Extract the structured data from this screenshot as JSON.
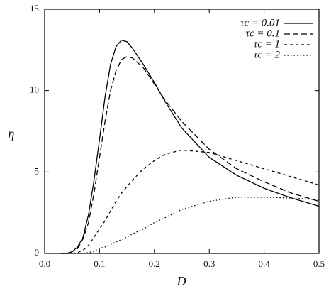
{
  "chart_data": {
    "type": "line",
    "xlabel": "D",
    "ylabel": "η",
    "x": [
      0.03,
      0.04,
      0.05,
      0.06,
      0.07,
      0.08,
      0.09,
      0.1,
      0.11,
      0.12,
      0.13,
      0.14,
      0.15,
      0.16,
      0.18,
      0.2,
      0.22,
      0.25,
      0.3,
      0.35,
      0.4,
      0.45,
      0.5
    ],
    "series": [
      {
        "name": "τc = 0.01",
        "color": "#000000",
        "dash": "none",
        "values": [
          0,
          0,
          0.1,
          0.4,
          1,
          2.4,
          4.5,
          7,
          9.6,
          11.6,
          12.7,
          13.1,
          13.0,
          12.6,
          11.6,
          10.5,
          9.3,
          7.7,
          5.9,
          4.8,
          4.0,
          3.4,
          2.9
        ]
      },
      {
        "name": "τc = 0.1",
        "color": "#000000",
        "dash": "8,4",
        "values": [
          0,
          0,
          0.1,
          0.3,
          0.9,
          1.9,
          3.7,
          5.9,
          8.1,
          10,
          11.2,
          11.9,
          12.1,
          12.0,
          11.4,
          10.4,
          9.4,
          8.1,
          6.4,
          5.2,
          4.4,
          3.7,
          3.2
        ]
      },
      {
        "name": "τc = 1",
        "color": "#000000",
        "dash": "4,4",
        "values": [
          0,
          0,
          0,
          0.05,
          0.2,
          0.5,
          1,
          1.5,
          2,
          2.6,
          3.2,
          3.7,
          4.1,
          4.5,
          5.2,
          5.7,
          6.1,
          6.35,
          6.2,
          5.7,
          5.2,
          4.7,
          4.2
        ]
      },
      {
        "name": "τc = 2",
        "color": "#000000",
        "dash": "1.5,3",
        "values": [
          0,
          0,
          0,
          0,
          0,
          0.05,
          0.15,
          0.3,
          0.4,
          0.55,
          0.7,
          0.85,
          1.0,
          1.2,
          1.5,
          1.9,
          2.2,
          2.7,
          3.2,
          3.45,
          3.45,
          3.4,
          3.3
        ]
      }
    ],
    "xlim": [
      0,
      0.5
    ],
    "xticks": [
      {
        "value": 0,
        "label": "0.0"
      },
      0.1,
      0.2,
      0.3,
      0.4,
      0.5
    ],
    "ylim": [
      0,
      15
    ],
    "yticks": [
      0,
      5,
      10,
      15
    ],
    "grid": false,
    "legend": "upper right"
  }
}
